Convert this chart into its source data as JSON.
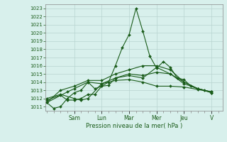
{
  "title": "",
  "xlabel": "Pression niveau de la mer( hPa )",
  "ylim": [
    1010.5,
    1023.5
  ],
  "yticks": [
    1011,
    1012,
    1013,
    1014,
    1015,
    1016,
    1017,
    1018,
    1019,
    1020,
    1021,
    1022,
    1023
  ],
  "bg_color": "#d8f0ec",
  "grid_color": "#b8d4d0",
  "line_color": "#1a5c1a",
  "day_labels": [
    "Sam",
    "Lun",
    "Mar",
    "Mer",
    "Jeu",
    "V"
  ],
  "day_positions": [
    2.0,
    4.0,
    6.0,
    8.0,
    10.0,
    12.0
  ],
  "xlim": [
    -0.1,
    12.8
  ],
  "series": [
    [
      0.0,
      1011.5,
      0.5,
      1010.8,
      1.0,
      1011.0,
      1.5,
      1012.0,
      2.0,
      1012.7,
      2.5,
      1013.0,
      3.0,
      1014.0,
      3.5,
      1013.2,
      4.0,
      1013.5,
      4.5,
      1014.0,
      5.0,
      1016.0,
      5.5,
      1018.2,
      6.0,
      1019.8,
      6.5,
      1023.0,
      7.0,
      1020.2,
      7.5,
      1017.2,
      8.0,
      1015.7,
      8.5,
      1016.5,
      9.0,
      1015.8,
      9.5,
      1014.5,
      10.0,
      1014.3,
      10.5,
      1013.5,
      11.0,
      1013.2,
      11.5,
      1013.0,
      12.0,
      1012.7
    ],
    [
      0.0,
      1011.5,
      1.5,
      1012.8,
      2.0,
      1013.2,
      3.0,
      1014.0,
      4.0,
      1013.8,
      5.0,
      1014.2,
      6.0,
      1014.3,
      7.0,
      1014.0,
      8.0,
      1013.5,
      9.0,
      1013.5,
      10.0,
      1013.4,
      11.0,
      1013.1,
      12.0,
      1012.8
    ],
    [
      0.0,
      1011.8,
      1.0,
      1012.4,
      1.5,
      1011.8,
      2.0,
      1011.8,
      2.5,
      1012.0,
      3.0,
      1012.5,
      3.5,
      1012.5,
      4.0,
      1013.5,
      4.5,
      1013.6,
      5.0,
      1014.5,
      6.0,
      1014.8,
      7.0,
      1014.5,
      8.0,
      1015.8,
      9.0,
      1015.0,
      10.0,
      1013.8,
      11.0,
      1013.2,
      12.0,
      1012.8
    ],
    [
      0.0,
      1011.5,
      1.0,
      1013.0,
      2.0,
      1013.5,
      3.0,
      1014.2,
      4.0,
      1014.2,
      5.0,
      1015.0,
      6.0,
      1015.5,
      7.0,
      1016.0,
      8.0,
      1016.0,
      9.0,
      1015.5,
      10.0,
      1014.0,
      11.0,
      1013.2,
      12.0,
      1012.7
    ],
    [
      0.0,
      1012.0,
      1.0,
      1012.5,
      2.0,
      1012.0,
      2.5,
      1011.8,
      3.0,
      1012.0,
      4.0,
      1013.8,
      5.0,
      1014.5,
      6.0,
      1015.0,
      7.0,
      1014.8,
      8.0,
      1015.2,
      9.0,
      1015.0,
      10.0,
      1014.0,
      11.0,
      1013.2,
      12.0,
      1012.8
    ]
  ]
}
